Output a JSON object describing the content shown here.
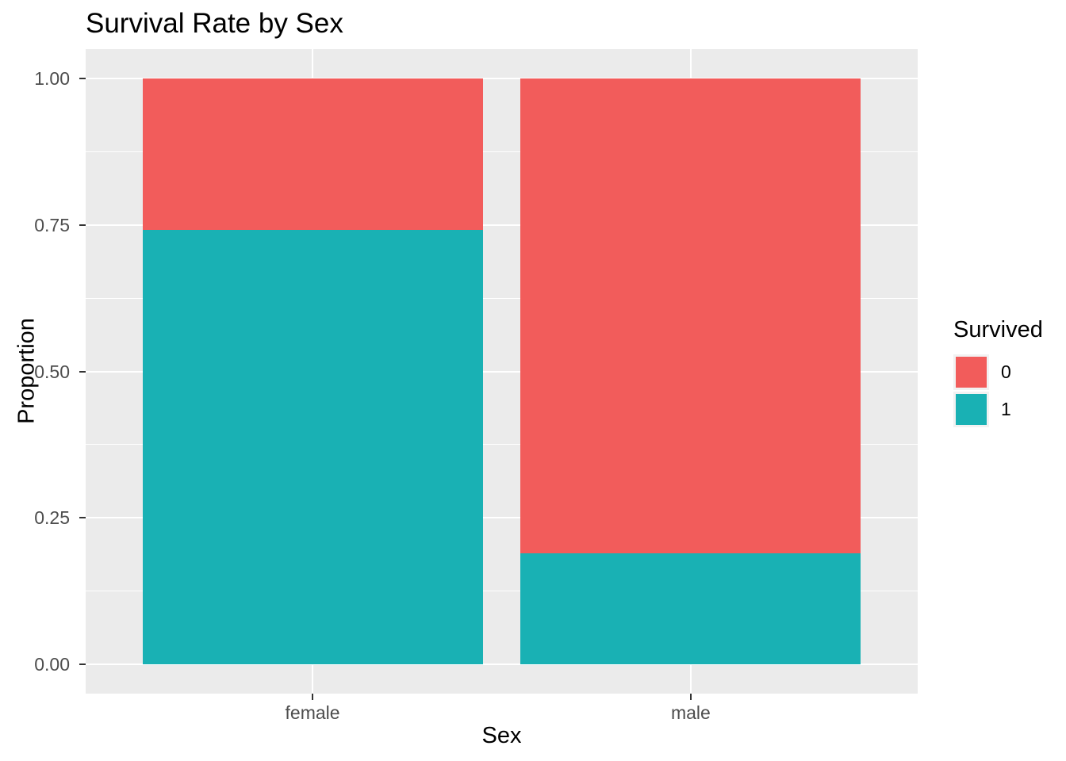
{
  "title": "Survival Rate by Sex",
  "colors": {
    "survived_0": "#F25C5B",
    "survived_1": "#19B1B4",
    "panel_bg": "#EBEBEB",
    "gridline": "#FFFFFF",
    "tick_mark": "#333333",
    "tick_label": "#4D4D4D",
    "legend_key_bg": "#F2F2F2",
    "text": "#000000"
  },
  "chart_data": {
    "type": "bar",
    "stacked": true,
    "normalized": true,
    "title": "Survival Rate by Sex",
    "xlabel": "Sex",
    "ylabel": "Proportion",
    "categories": [
      "female",
      "male"
    ],
    "series": [
      {
        "name": "0",
        "color": "#F25C5B",
        "values": [
          0.258,
          0.811
        ]
      },
      {
        "name": "1",
        "color": "#19B1B4",
        "values": [
          0.742,
          0.189
        ]
      }
    ],
    "ylim": [
      0,
      1
    ],
    "yticks": [
      0.0,
      0.25,
      0.5,
      0.75,
      1.0
    ],
    "ytick_labels": [
      "0.00",
      "0.25",
      "0.50",
      "0.75",
      "1.00"
    ],
    "yminor": [
      0.125,
      0.375,
      0.625,
      0.875
    ],
    "grid": true,
    "legend": {
      "title": "Survived",
      "entries": [
        "0",
        "1"
      ],
      "position": "right"
    }
  }
}
